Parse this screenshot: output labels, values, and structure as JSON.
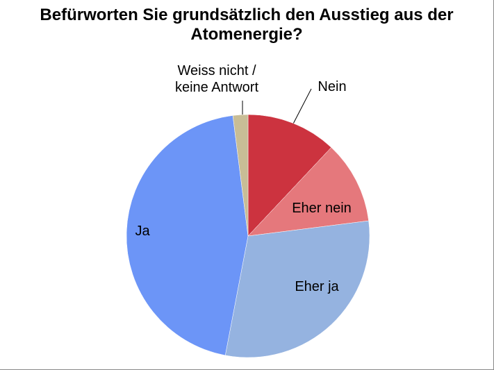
{
  "chart_data": {
    "type": "pie",
    "title": "Befürworten Sie grundsätzlich den Ausstieg aus der Atomenergie?",
    "categories": [
      "Nein",
      "Eher nein",
      "Eher ja",
      "Ja",
      "Weiss nicht / keine Antwort"
    ],
    "values": [
      12,
      11,
      30,
      45,
      2
    ],
    "colors": [
      "#cc333f",
      "#e5787c",
      "#95b3e0",
      "#6c95f7",
      "#c8bd96"
    ]
  }
}
